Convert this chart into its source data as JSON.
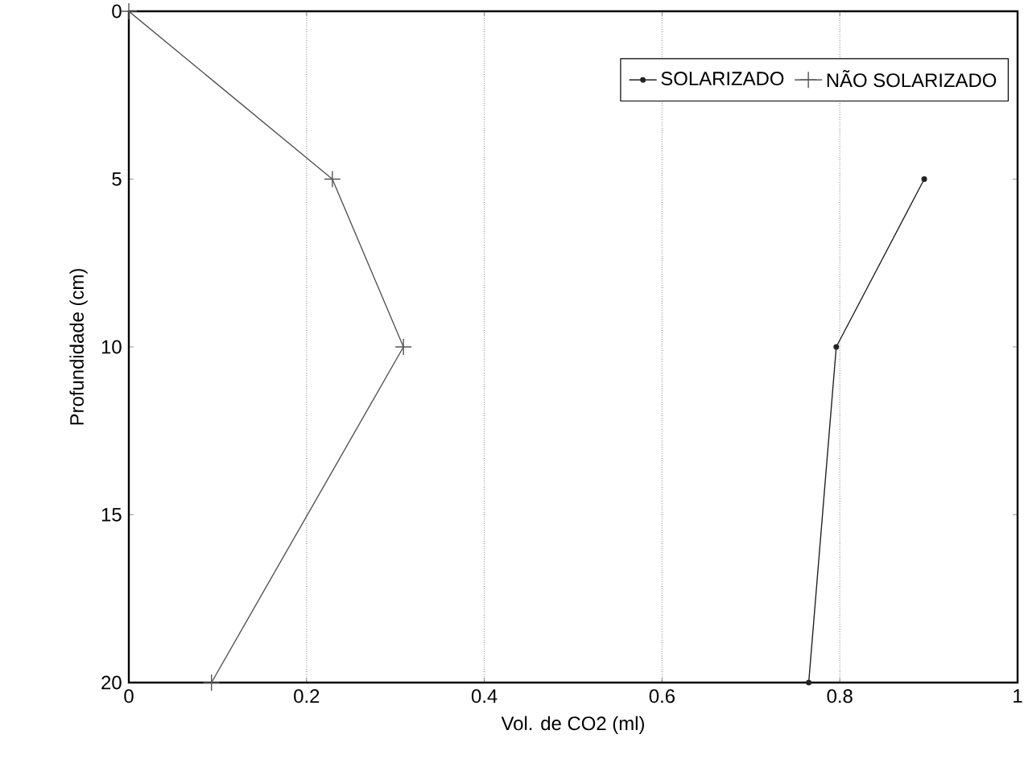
{
  "chart_data": {
    "type": "line",
    "xlabel": "Vol. de CO2 (ml)",
    "ylabel": "Profundidade (cm)",
    "xlim": [
      0,
      1
    ],
    "xticks": [
      0,
      0.2,
      0.4,
      0.6,
      0.8,
      1
    ],
    "ylim": [
      20,
      0
    ],
    "yticks": [
      0,
      5,
      10,
      15,
      20
    ],
    "grid": "x",
    "legend": "top right",
    "series": [
      {
        "name": "SOLARIZADO",
        "color": "#222222",
        "marker": "circle",
        "x": [
          0.895,
          0.796,
          0.765
        ],
        "values": [
          5,
          10,
          20
        ]
      },
      {
        "name": "NÃO SOLARIZADO",
        "color": "#555555",
        "marker": "cross",
        "x": [
          0,
          0.229,
          0.309,
          0.093
        ],
        "values": [
          0,
          5,
          10,
          20
        ]
      }
    ]
  }
}
